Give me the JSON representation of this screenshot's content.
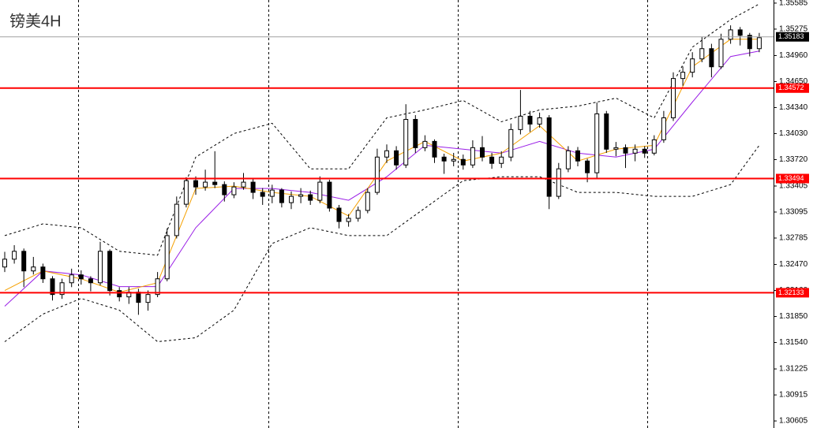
{
  "chart_data": {
    "type": "candlestick",
    "title": "镑美4H",
    "ylim": [
      1.30521,
      1.35622
    ],
    "yticks": [
      1.35585,
      1.35275,
      {
        "value": 1.3496,
        "label": "1.34960"
      },
      {
        "value": 1.3465,
        "label": "1.34650"
      },
      {
        "value": 1.3434,
        "label": "1.34340"
      },
      {
        "value": 1.3403,
        "label": "1.34030"
      },
      {
        "value": 1.3372,
        "label": "1.33720"
      },
      1.33405,
      1.33095,
      1.32785,
      {
        "value": 1.3247,
        "label": "1.32470"
      },
      {
        "value": 1.3216,
        "label": "1.32160"
      },
      {
        "value": 1.3185,
        "label": "1.31850"
      },
      {
        "value": 1.3154,
        "label": "1.31540"
      },
      1.31225,
      1.30915,
      1.30605
    ],
    "up_color": "#ffffff",
    "down_color": "#000000",
    "open": [
      1.3244,
      1.32533,
      1.32627,
      1.32393,
      1.3244,
      1.32299,
      1.32112,
      1.32252,
      1.32346,
      1.32299,
      1.32252,
      1.32627,
      1.32159,
      1.32084,
      1.3214,
      1.32018,
      1.32112,
      1.32299,
      1.32814,
      1.33188,
      1.33469,
      1.33394,
      1.33451,
      1.33422,
      1.33301,
      1.33394,
      1.33451,
      1.33329,
      1.33282,
      1.33357,
      1.33207,
      1.33282,
      1.33301,
      1.33235,
      1.33451,
      1.33142,
      1.32982,
      1.3302,
      1.33114,
      1.33329,
      1.3375,
      1.33825,
      1.33656,
      1.34199,
      1.33862,
      1.33937,
      1.3375,
      1.33703,
      1.33722,
      1.33656,
      1.33862,
      1.3375,
      1.33675,
      1.3375,
      1.34078,
      1.34237,
      1.34143,
      1.34218,
      1.33282,
      1.3361,
      1.33825,
      1.33703,
      1.33563,
      1.34265,
      1.33844,
      1.33862,
      1.33797,
      1.33844,
      1.33797,
      1.33956,
      1.34218,
      1.34686,
      1.34761,
      1.3492,
      1.35042,
      1.34826,
      1.35154,
      1.35266,
      1.35201,
      1.35042
    ],
    "high": [
      1.3262,
      1.327,
      1.3266,
      1.3256,
      1.3248,
      1.3233,
      1.323,
      1.3242,
      1.324,
      1.3233,
      1.3274,
      1.3265,
      1.322,
      1.322,
      1.3218,
      1.3216,
      1.3238,
      1.329,
      1.3328,
      1.3351,
      1.3352,
      1.336,
      1.3382,
      1.3346,
      1.3345,
      1.3356,
      1.3349,
      1.3338,
      1.3342,
      1.3338,
      1.3334,
      1.3338,
      1.3335,
      1.3352,
      1.3348,
      1.3318,
      1.3307,
      1.3316,
      1.3338,
      1.3385,
      1.339,
      1.3388,
      1.3438,
      1.3425,
      1.3401,
      1.3396,
      1.3379,
      1.338,
      1.3378,
      1.3395,
      1.34,
      1.338,
      1.3382,
      1.3415,
      1.3455,
      1.343,
      1.3428,
      1.3425,
      1.3368,
      1.3388,
      1.3387,
      1.3373,
      1.344,
      1.343,
      1.3393,
      1.339,
      1.339,
      1.3388,
      1.3401,
      1.343,
      1.3476,
      1.3483,
      1.35,
      1.3518,
      1.351,
      1.3522,
      1.3532,
      1.353,
      1.3523,
      1.3523
    ],
    "low": [
      1.3238,
      1.3248,
      1.322,
      1.3235,
      1.3225,
      1.3204,
      1.3206,
      1.322,
      1.3223,
      1.3215,
      1.3222,
      1.321,
      1.3203,
      1.32,
      1.3187,
      1.3192,
      1.3208,
      1.3227,
      1.3278,
      1.3315,
      1.333,
      1.3335,
      1.3338,
      1.3322,
      1.3326,
      1.3336,
      1.3325,
      1.3318,
      1.332,
      1.3315,
      1.3313,
      1.332,
      1.3318,
      1.332,
      1.331,
      1.329,
      1.3292,
      1.3298,
      1.3308,
      1.333,
      1.3368,
      1.336,
      1.3362,
      1.338,
      1.3382,
      1.3368,
      1.3355,
      1.3364,
      1.336,
      1.3362,
      1.337,
      1.3361,
      1.3362,
      1.337,
      1.3402,
      1.3405,
      1.341,
      1.3313,
      1.3325,
      1.3357,
      1.3364,
      1.3345,
      1.335,
      1.338,
      1.3376,
      1.3362,
      1.337,
      1.3374,
      1.3377,
      1.3392,
      1.3418,
      1.346,
      1.347,
      1.3488,
      1.347,
      1.348,
      1.351,
      1.3508,
      1.3495,
      1.35
    ],
    "close": [
      1.32533,
      1.32627,
      1.32393,
      1.3244,
      1.32299,
      1.32112,
      1.32252,
      1.32346,
      1.32299,
      1.32252,
      1.32627,
      1.32159,
      1.32084,
      1.3214,
      1.32018,
      1.32112,
      1.32299,
      1.32814,
      1.33188,
      1.33469,
      1.33394,
      1.33451,
      1.33422,
      1.33301,
      1.33394,
      1.33451,
      1.33329,
      1.33282,
      1.33357,
      1.33207,
      1.33282,
      1.33301,
      1.33235,
      1.33451,
      1.33142,
      1.32982,
      1.3302,
      1.33114,
      1.33329,
      1.3375,
      1.33825,
      1.33656,
      1.34199,
      1.33862,
      1.33937,
      1.3375,
      1.33703,
      1.33722,
      1.33656,
      1.33862,
      1.3375,
      1.33675,
      1.3375,
      1.34078,
      1.34237,
      1.34143,
      1.34218,
      1.33282,
      1.3361,
      1.33825,
      1.33703,
      1.33563,
      1.34265,
      1.33844,
      1.33862,
      1.33797,
      1.33844,
      1.33797,
      1.33956,
      1.34218,
      1.34686,
      1.34761,
      1.3492,
      1.35042,
      1.34826,
      1.35154,
      1.35266,
      1.35201,
      1.35042,
      1.35173
    ],
    "overlays": [
      {
        "color": "#000000",
        "dashed": true,
        "x": [
          0,
          4,
          8,
          12,
          16,
          20,
          24,
          28,
          32,
          36,
          40,
          44,
          48,
          52,
          56,
          60,
          64,
          68,
          72,
          76,
          79
        ],
        "values": [
          1.32814,
          1.32954,
          1.32908,
          1.32627,
          1.3258,
          1.3375,
          1.34031,
          1.34153,
          1.3361,
          1.3361,
          1.34218,
          1.34312,
          1.34424,
          1.34171,
          1.34312,
          1.34358,
          1.34452,
          1.34218,
          1.3506,
          1.35388,
          1.35575
        ]
      },
      {
        "color": "#000000",
        "dashed": true,
        "x": [
          0,
          4,
          8,
          12,
          16,
          20,
          24,
          28,
          32,
          36,
          40,
          44,
          48,
          52,
          56,
          60,
          64,
          68,
          72,
          76,
          79
        ],
        "values": [
          1.3155,
          1.31878,
          1.32065,
          1.31925,
          1.3155,
          1.31597,
          1.31925,
          1.3272,
          1.32908,
          1.32814,
          1.32814,
          1.33142,
          1.33469,
          1.33516,
          1.33516,
          1.33329,
          1.33329,
          1.33282,
          1.33282,
          1.33422,
          1.3389
        ]
      },
      {
        "color": "#9a1ee6",
        "dashed": false,
        "x": [
          0,
          4,
          8,
          12,
          16,
          20,
          24,
          28,
          32,
          36,
          40,
          44,
          48,
          52,
          56,
          60,
          64,
          68,
          72,
          76,
          79
        ],
        "values": [
          1.31972,
          1.32393,
          1.32346,
          1.32206,
          1.32206,
          1.32908,
          1.33376,
          1.33376,
          1.33329,
          1.33235,
          1.33516,
          1.3389,
          1.33844,
          1.33797,
          1.33937,
          1.33797,
          1.3375,
          1.33844,
          1.34405,
          1.34948,
          1.35014
        ]
      },
      {
        "color": "#f5a000",
        "dashed": false,
        "x": [
          0,
          4,
          8,
          12,
          16,
          20,
          24,
          28,
          32,
          36,
          40,
          44,
          48,
          52,
          56,
          60,
          64,
          68,
          72,
          76,
          79
        ],
        "values": [
          1.32159,
          1.32393,
          1.32299,
          1.3214,
          1.32252,
          1.33376,
          1.33404,
          1.33329,
          1.33282,
          1.33048,
          1.33703,
          1.33937,
          1.33703,
          1.33797,
          1.34124,
          1.33703,
          1.33844,
          1.3389,
          1.34826,
          1.35154,
          1.35154
        ]
      }
    ],
    "levels": [
      {
        "value": 1.34572,
        "color": "#ff0000"
      },
      {
        "value": 1.33494,
        "color": "#ff0000"
      },
      {
        "value": 1.32133,
        "color": "#ff0000"
      }
    ],
    "current_price": {
      "value": 1.35183,
      "color": "#000000",
      "line_color": "#a0a0a0"
    }
  }
}
